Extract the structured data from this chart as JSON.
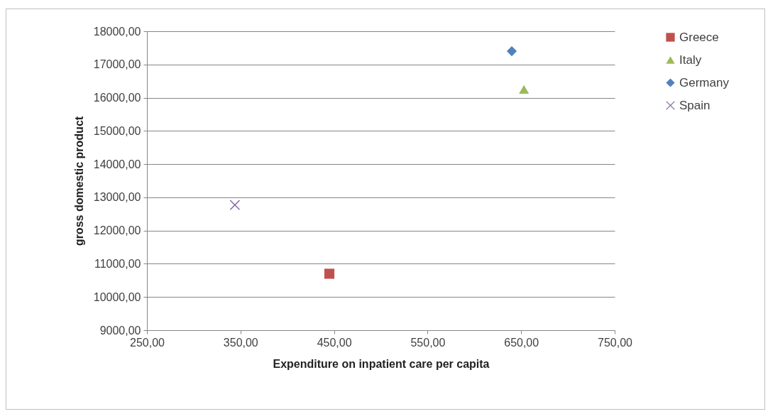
{
  "chart_data": {
    "type": "scatter",
    "xlabel": "Expenditure on inpatient care per capita",
    "ylabel": "gross domestic product",
    "xlim": [
      250,
      750
    ],
    "xticks": [
      {
        "value": 250,
        "label": "250,00"
      },
      {
        "value": 350,
        "label": "350,00"
      },
      {
        "value": 450,
        "label": "450,00"
      },
      {
        "value": 550,
        "label": "550,00"
      },
      {
        "value": 650,
        "label": "650,00"
      },
      {
        "value": 750,
        "label": "750,00"
      }
    ],
    "ylim": [
      9000,
      18000
    ],
    "yticks": [
      {
        "value": 9000,
        "label": "9000,00"
      },
      {
        "value": 10000,
        "label": "10000,00"
      },
      {
        "value": 11000,
        "label": "11000,00"
      },
      {
        "value": 12000,
        "label": "12000,00"
      },
      {
        "value": 13000,
        "label": "13000,00"
      },
      {
        "value": 14000,
        "label": "14000,00"
      },
      {
        "value": 15000,
        "label": "15000,00"
      },
      {
        "value": 16000,
        "label": "16000,00"
      },
      {
        "value": 17000,
        "label": "17000,00"
      },
      {
        "value": 18000,
        "label": "18000,00"
      }
    ],
    "grid": "y",
    "legend": "right",
    "series": [
      {
        "name": "Greece",
        "color": "#c0504d",
        "marker": "square",
        "x": [
          445
        ],
        "values": [
          10700
        ]
      },
      {
        "name": "Italy",
        "color": "#9bbb59",
        "marker": "triangle",
        "x": [
          653
        ],
        "values": [
          16250
        ]
      },
      {
        "name": "Germany",
        "color": "#4f81bd",
        "marker": "diamond",
        "x": [
          640
        ],
        "values": [
          17400
        ]
      },
      {
        "name": "Spain",
        "color": "#8064a2",
        "marker": "cross",
        "x": [
          344
        ],
        "values": [
          12770
        ]
      }
    ]
  }
}
